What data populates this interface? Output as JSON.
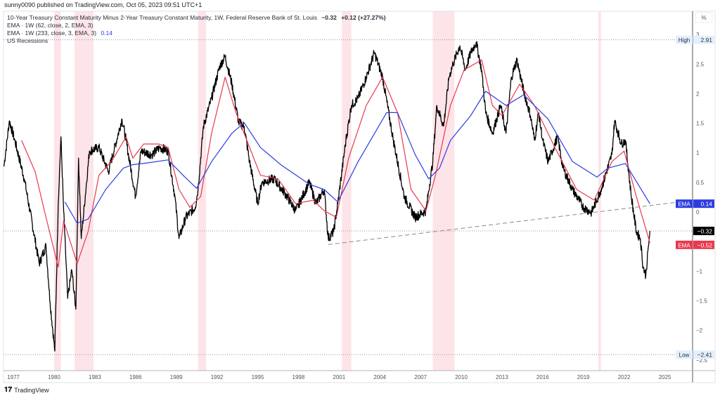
{
  "header": {
    "published": "sunny0090 published on TradingView.com, Oct 05, 2023 09:51 UTC+1"
  },
  "legend": {
    "main_title": "10-Year Treasury Constant Maturity Minus 2-Year Treasury Constant Maturity, 1W, Federal Reserve Bank of St. Louis",
    "main_value": "−0.32",
    "main_change": "+0.12 (+27.27%)",
    "ema1": "EMA · 1W (62, close, 2, EMA, 3)",
    "ema2": "EMA · 1W (233, close, 3, EMA, 3)",
    "ema2_value": "0.14",
    "recessions": "US Recessions"
  },
  "footer": {
    "brand": "TradingView"
  },
  "colors": {
    "price": "#000000",
    "ema_fast": "#e8394d",
    "ema_slow": "#2b3de0",
    "recession": "#fde4e8",
    "trendline": "#888888"
  },
  "chart_data": {
    "type": "line",
    "unit_label": "%",
    "xlim": [
      1976.3,
      2026.8
    ],
    "ylim": [
      -2.6,
      3.1
    ],
    "x_ticks": [
      "1977",
      "1980",
      "1983",
      "1986",
      "1989",
      "1992",
      "1995",
      "1998",
      "2001",
      "2004",
      "2007",
      "2010",
      "2013",
      "2016",
      "2019",
      "2022",
      "2025"
    ],
    "y_ticks": [
      "3",
      "2.5",
      "2",
      "1.5",
      "1",
      "0.5",
      "0",
      "−1",
      "−1.5",
      "−2",
      "−2.5"
    ],
    "y_tick_values": [
      3,
      2.5,
      2,
      1.5,
      1,
      0.5,
      0,
      -1,
      -1.5,
      -2,
      -2.5
    ],
    "recessions": [
      [
        1980.0,
        1980.5
      ],
      [
        1981.5,
        1982.9
      ],
      [
        1990.6,
        1991.2
      ],
      [
        2001.2,
        2001.9
      ],
      [
        2007.9,
        2009.5
      ],
      [
        2020.1,
        2020.3
      ]
    ],
    "series": [
      {
        "key": "price",
        "points": [
          [
            1976.3,
            0.77
          ],
          [
            1976.7,
            1.54
          ],
          [
            1977.1,
            1.21
          ],
          [
            1977.8,
            0.56
          ],
          [
            1978.9,
            -0.87
          ],
          [
            1979.4,
            -0.57
          ],
          [
            1979.7,
            -1.52
          ],
          [
            1980.05,
            -2.35
          ],
          [
            1980.3,
            0.14
          ],
          [
            1980.5,
            1.27
          ],
          [
            1980.7,
            0.02
          ],
          [
            1981.0,
            -1.46
          ],
          [
            1981.3,
            -0.98
          ],
          [
            1981.6,
            -1.64
          ],
          [
            1981.8,
            0.91
          ],
          [
            1982.0,
            -0.45
          ],
          [
            1982.6,
            1.03
          ],
          [
            1983.3,
            1.09
          ],
          [
            1984.0,
            0.68
          ],
          [
            1985.0,
            1.57
          ],
          [
            1985.3,
            1.21
          ],
          [
            1986.0,
            0.26
          ],
          [
            1986.4,
            1.03
          ],
          [
            1987.2,
            0.97
          ],
          [
            1987.8,
            1.09
          ],
          [
            1988.4,
            1.03
          ],
          [
            1988.9,
            0.26
          ],
          [
            1989.2,
            -0.45
          ],
          [
            1989.7,
            -0.09
          ],
          [
            1990.4,
            0.08
          ],
          [
            1990.6,
            0.38
          ],
          [
            1991.0,
            1.45
          ],
          [
            1991.6,
            1.92
          ],
          [
            1992.2,
            2.46
          ],
          [
            1992.6,
            2.63
          ],
          [
            1993.1,
            2.16
          ],
          [
            1993.6,
            1.51
          ],
          [
            1994.0,
            1.45
          ],
          [
            1994.4,
            0.85
          ],
          [
            1995.0,
            0.14
          ],
          [
            1995.3,
            0.5
          ],
          [
            1996.2,
            0.56
          ],
          [
            1997.0,
            0.32
          ],
          [
            1997.8,
            0.02
          ],
          [
            1998.8,
            0.5
          ],
          [
            1999.3,
            0.14
          ],
          [
            1999.9,
            0.38
          ],
          [
            2000.2,
            -0.45
          ],
          [
            2000.6,
            -0.33
          ],
          [
            2000.9,
            0.14
          ],
          [
            2001.5,
            1.21
          ],
          [
            2001.9,
            1.8
          ],
          [
            2002.4,
            1.92
          ],
          [
            2003.0,
            2.28
          ],
          [
            2003.6,
            2.69
          ],
          [
            2004.2,
            2.28
          ],
          [
            2005.0,
            1.21
          ],
          [
            2005.8,
            0.26
          ],
          [
            2006.6,
            -0.09
          ],
          [
            2007.4,
            0.02
          ],
          [
            2007.9,
            0.85
          ],
          [
            2008.2,
            1.8
          ],
          [
            2008.7,
            1.45
          ],
          [
            2009.1,
            2.28
          ],
          [
            2009.4,
            2.51
          ],
          [
            2009.9,
            2.81
          ],
          [
            2010.3,
            2.4
          ],
          [
            2010.7,
            2.69
          ],
          [
            2011.1,
            2.87
          ],
          [
            2011.5,
            2.4
          ],
          [
            2011.8,
            1.68
          ],
          [
            2012.3,
            1.33
          ],
          [
            2012.9,
            1.8
          ],
          [
            2013.3,
            1.33
          ],
          [
            2013.7,
            2.28
          ],
          [
            2014.1,
            2.57
          ],
          [
            2014.6,
            2.04
          ],
          [
            2015.1,
            1.63
          ],
          [
            2015.4,
            1.21
          ],
          [
            2015.7,
            1.68
          ],
          [
            2016.0,
            1.21
          ],
          [
            2016.4,
            0.85
          ],
          [
            2017.1,
            1.27
          ],
          [
            2017.5,
            0.74
          ],
          [
            2018.2,
            0.38
          ],
          [
            2019.0,
            0.08
          ],
          [
            2019.6,
            -0.01
          ],
          [
            2020.3,
            0.38
          ],
          [
            2021.1,
            0.97
          ],
          [
            2021.3,
            1.54
          ],
          [
            2021.8,
            1.15
          ],
          [
            2022.1,
            1.21
          ],
          [
            2022.5,
            0.32
          ],
          [
            2022.9,
            -0.33
          ],
          [
            2023.2,
            -0.45
          ],
          [
            2023.4,
            -0.93
          ],
          [
            2023.6,
            -1.07
          ],
          [
            2023.8,
            -0.57
          ],
          [
            2023.9,
            -0.32
          ]
        ]
      },
      {
        "key": "ema_fast",
        "points": [
          [
            1977.6,
            1.21
          ],
          [
            1978.6,
            0.68
          ],
          [
            1979.4,
            -0.09
          ],
          [
            1980.3,
            -0.93
          ],
          [
            1980.7,
            -0.15
          ],
          [
            1981.7,
            -0.87
          ],
          [
            1982.5,
            -0.33
          ],
          [
            1983.3,
            0.62
          ],
          [
            1984.3,
            0.88
          ],
          [
            1985.3,
            1.27
          ],
          [
            1985.8,
            0.91
          ],
          [
            1986.6,
            1.15
          ],
          [
            1987.7,
            1.15
          ],
          [
            1988.4,
            1.09
          ],
          [
            1989.2,
            0.38
          ],
          [
            1990.0,
            0.08
          ],
          [
            1990.8,
            0.26
          ],
          [
            1991.6,
            1.33
          ],
          [
            1992.6,
            2.28
          ],
          [
            1993.4,
            1.68
          ],
          [
            1994.1,
            1.27
          ],
          [
            1995.2,
            0.62
          ],
          [
            1996.5,
            0.56
          ],
          [
            1997.8,
            0.14
          ],
          [
            1999.1,
            0.2
          ],
          [
            1999.9,
            0.02
          ],
          [
            2000.8,
            -0.09
          ],
          [
            2001.7,
            0.91
          ],
          [
            2003.0,
            1.8
          ],
          [
            2004.2,
            2.28
          ],
          [
            2005.3,
            1.68
          ],
          [
            2006.3,
            0.38
          ],
          [
            2007.4,
            0.02
          ],
          [
            2008.1,
            0.62
          ],
          [
            2009.2,
            1.8
          ],
          [
            2010.2,
            2.4
          ],
          [
            2011.5,
            2.57
          ],
          [
            2012.3,
            1.8
          ],
          [
            2013.0,
            1.63
          ],
          [
            2014.3,
            2.16
          ],
          [
            2015.4,
            1.8
          ],
          [
            2016.9,
            1.09
          ],
          [
            2018.5,
            0.38
          ],
          [
            2019.8,
            0.2
          ],
          [
            2021.1,
            0.85
          ],
          [
            2022.0,
            1.03
          ],
          [
            2022.9,
            0.26
          ],
          [
            2023.9,
            -0.52
          ]
        ]
      },
      {
        "key": "ema_slow",
        "points": [
          [
            1980.8,
            0.17
          ],
          [
            1981.7,
            -0.19
          ],
          [
            1982.5,
            -0.12
          ],
          [
            1983.8,
            0.38
          ],
          [
            1985.1,
            0.74
          ],
          [
            1985.8,
            0.8
          ],
          [
            1986.9,
            0.83
          ],
          [
            1988.4,
            0.88
          ],
          [
            1989.5,
            0.62
          ],
          [
            1990.5,
            0.4
          ],
          [
            1991.6,
            0.85
          ],
          [
            1993.1,
            1.33
          ],
          [
            1994.0,
            1.51
          ],
          [
            1995.2,
            1.09
          ],
          [
            1996.7,
            0.8
          ],
          [
            1998.8,
            0.47
          ],
          [
            1999.9,
            0.38
          ],
          [
            2000.9,
            0.17
          ],
          [
            2002.4,
            0.85
          ],
          [
            2004.5,
            1.68
          ],
          [
            2005.3,
            1.68
          ],
          [
            2006.6,
            0.97
          ],
          [
            2007.6,
            0.56
          ],
          [
            2008.4,
            0.74
          ],
          [
            2009.2,
            1.21
          ],
          [
            2010.7,
            1.63
          ],
          [
            2011.8,
            2.04
          ],
          [
            2013.3,
            1.8
          ],
          [
            2014.6,
            1.98
          ],
          [
            2016.4,
            1.57
          ],
          [
            2018.2,
            0.85
          ],
          [
            2020.0,
            0.59
          ],
          [
            2020.8,
            0.74
          ],
          [
            2022.1,
            0.82
          ],
          [
            2023.9,
            0.14
          ]
        ]
      }
    ],
    "trendline": [
      [
        2000.2,
        -0.55
      ],
      [
        2026.1,
        0.17
      ]
    ],
    "price_labels": [
      {
        "name": "high",
        "tag": "High",
        "value": 2.91,
        "text": "2.91"
      },
      {
        "name": "ema-slow",
        "tag": "EMA",
        "value": 0.14,
        "text": "0.14"
      },
      {
        "name": "last",
        "tag": "",
        "value": -0.32,
        "text": "−0.32"
      },
      {
        "name": "ema-fast",
        "tag": "EMA",
        "value": -0.52,
        "text": "−0.52"
      },
      {
        "name": "low",
        "tag": "Low",
        "value": -2.41,
        "text": "−2.41"
      }
    ]
  }
}
